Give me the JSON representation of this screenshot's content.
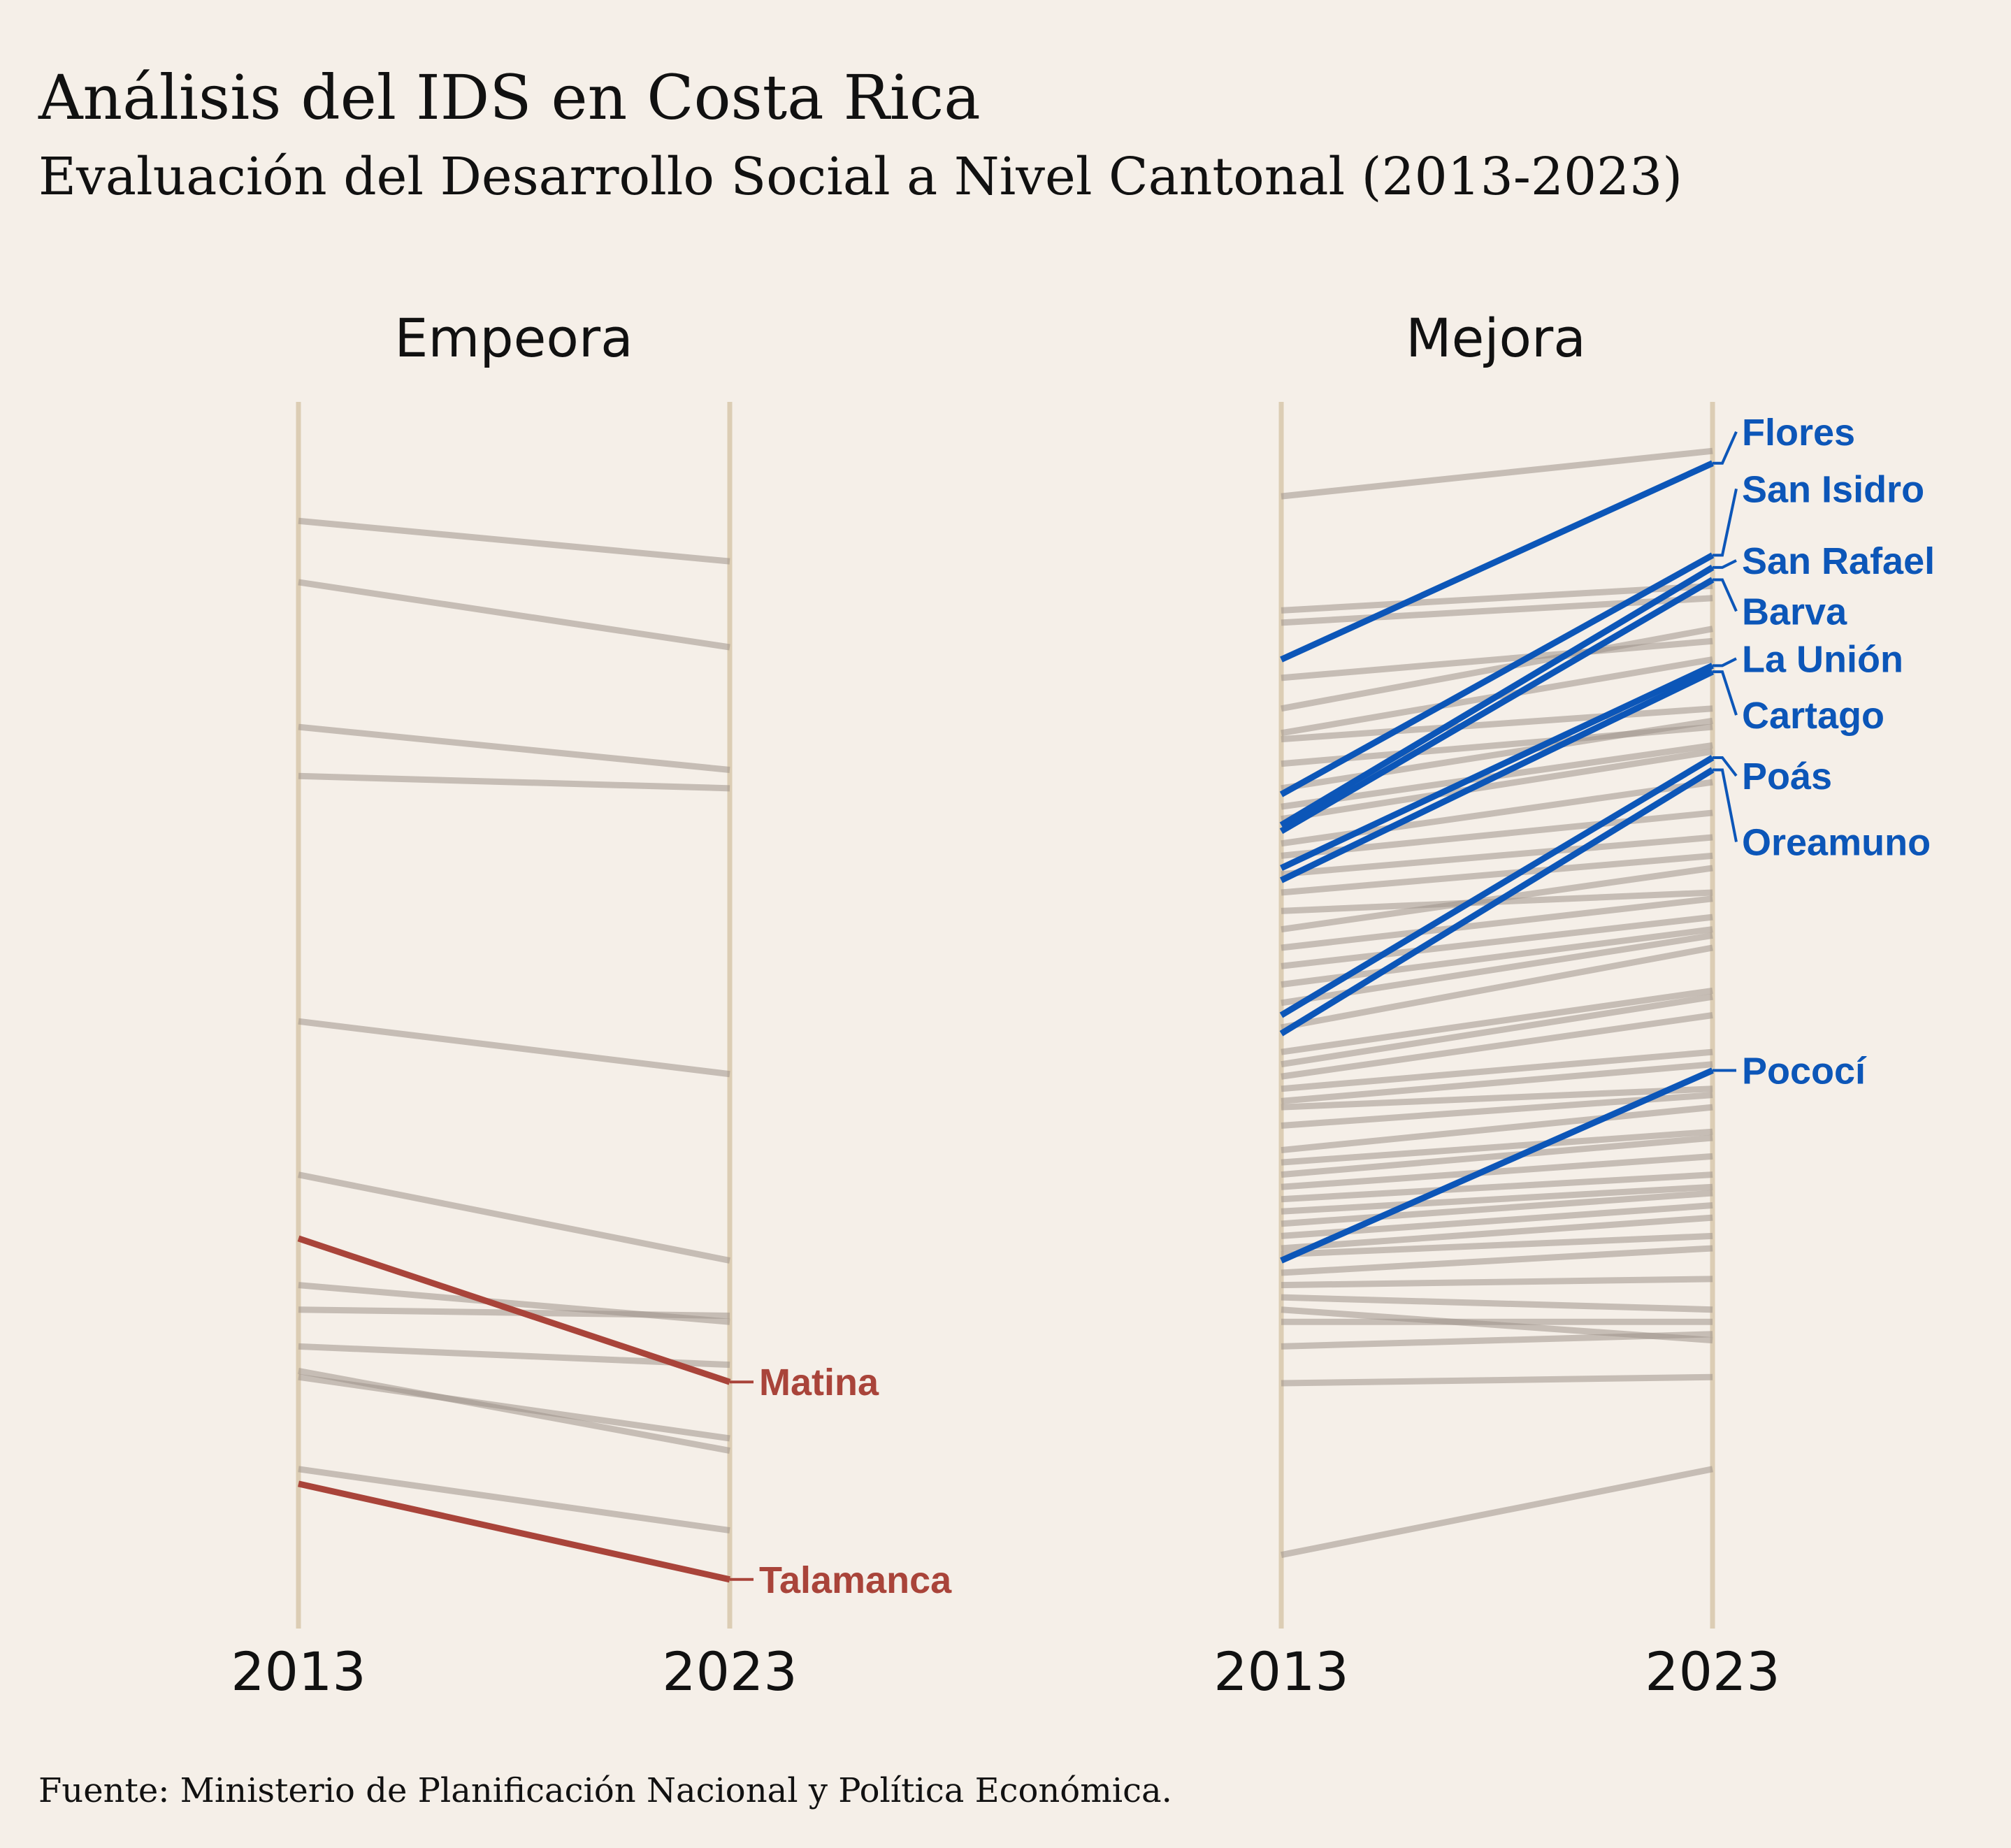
{
  "title": "Análisis del IDS en Costa Rica",
  "subtitle": "Evaluación del Desarrollo Social a Nivel Cantonal (2013-2023)",
  "source": "Fuente: Ministerio de Planificación Nacional y Política Económica.",
  "colors": {
    "background": "#f5efe8",
    "axis": "#dccdb4",
    "grey_line": "#9e938a",
    "worsen": "#a9443a",
    "improve": "#0c56b8"
  },
  "chart_data": {
    "type": "slope",
    "x": [
      "2013",
      "2023"
    ],
    "ylim": [
      0,
      100
    ],
    "panels": [
      {
        "title": "Empeora",
        "highlighted": [
          {
            "name": "Matina",
            "y2013": 31.8,
            "y2023": 20.1
          },
          {
            "name": "Talamanca",
            "y2013": 11.8,
            "y2023": 4.0
          }
        ],
        "other": [
          [
            90.3,
            87.0
          ],
          [
            85.3,
            80.0
          ],
          [
            73.5,
            70.0
          ],
          [
            69.5,
            68.5
          ],
          [
            49.5,
            45.2
          ],
          [
            37.0,
            30.0
          ],
          [
            28.0,
            25.0
          ],
          [
            26.0,
            25.5
          ],
          [
            23.0,
            21.5
          ],
          [
            21.0,
            14.5
          ],
          [
            20.5,
            15.5
          ],
          [
            13.0,
            8.0
          ]
        ]
      },
      {
        "title": "Mejora",
        "highlighted": [
          {
            "name": "Flores",
            "y2013": 79.0,
            "y2023": 95.0
          },
          {
            "name": "San Isidro",
            "y2013": 68.0,
            "y2023": 87.5
          },
          {
            "name": "San Rafael",
            "y2013": 65.5,
            "y2023": 86.5
          },
          {
            "name": "Barva",
            "y2013": 65.0,
            "y2023": 85.5
          },
          {
            "name": "La Unión",
            "y2013": 62.0,
            "y2023": 78.5
          },
          {
            "name": "Cartago",
            "y2013": 61.0,
            "y2023": 78.0
          },
          {
            "name": "Poás",
            "y2013": 50.0,
            "y2023": 71.0
          },
          {
            "name": "Oreamuno",
            "y2013": 48.5,
            "y2023": 70.0
          },
          {
            "name": "Pococí",
            "y2013": 30.0,
            "y2023": 45.5
          }
        ],
        "other": [
          [
            92.3,
            96.0
          ],
          [
            83.0,
            85.0
          ],
          [
            82.0,
            84.0
          ],
          [
            77.5,
            80.5
          ],
          [
            75.0,
            81.5
          ],
          [
            73.0,
            79.0
          ],
          [
            72.5,
            75.0
          ],
          [
            70.5,
            73.5
          ],
          [
            68.5,
            74.0
          ],
          [
            67.0,
            72.0
          ],
          [
            66.0,
            71.5
          ],
          [
            64.0,
            69.0
          ],
          [
            63.0,
            66.5
          ],
          [
            61.5,
            64.5
          ],
          [
            60.0,
            63.0
          ],
          [
            58.5,
            60.0
          ],
          [
            57.0,
            62.0
          ],
          [
            55.5,
            59.5
          ],
          [
            54.0,
            58.0
          ],
          [
            52.5,
            57.0
          ],
          [
            51.0,
            56.5
          ],
          [
            49.0,
            55.5
          ],
          [
            47.0,
            52.0
          ],
          [
            46.0,
            51.5
          ],
          [
            45.0,
            50.0
          ],
          [
            44.0,
            47.0
          ],
          [
            43.0,
            46.0
          ],
          [
            42.5,
            44.0
          ],
          [
            41.0,
            43.5
          ],
          [
            39.0,
            42.5
          ],
          [
            38.0,
            40.5
          ],
          [
            37.0,
            40.0
          ],
          [
            36.0,
            38.5
          ],
          [
            35.0,
            37.0
          ],
          [
            34.0,
            36.0
          ],
          [
            33.0,
            35.5
          ],
          [
            32.0,
            34.5
          ],
          [
            31.0,
            33.5
          ],
          [
            30.5,
            32.0
          ],
          [
            29.0,
            31.0
          ],
          [
            28.0,
            28.5
          ],
          [
            27.0,
            26.0
          ],
          [
            26.0,
            23.5
          ],
          [
            25.0,
            25.0
          ],
          [
            23.0,
            24.0
          ],
          [
            20.0,
            20.5
          ],
          [
            6.0,
            13.0
          ]
        ]
      }
    ]
  }
}
